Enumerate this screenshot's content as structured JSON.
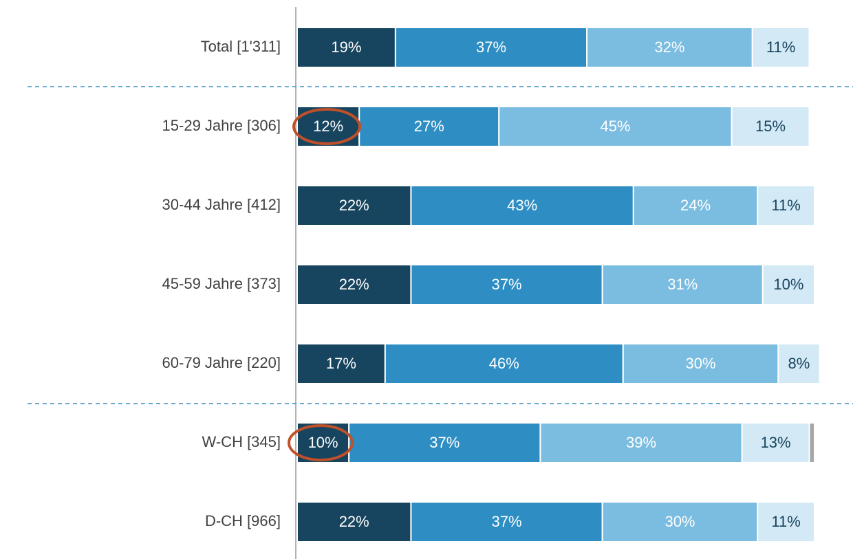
{
  "chart_data": {
    "type": "bar",
    "orientation": "horizontal",
    "stacked": true,
    "categories": [
      "Total [1'311]",
      "15-29 Jahre [306]",
      "30-44 Jahre [412]",
      "45-59 Jahre [373]",
      "60-79 Jahre [220]",
      "W-CH [345]",
      "D-CH [966]"
    ],
    "series": [
      {
        "color": "#17445e",
        "values": [
          19,
          12,
          22,
          22,
          17,
          10,
          22
        ],
        "value_labels": [
          "19%",
          "12%",
          "22%",
          "22%",
          "17%",
          "10%",
          "22%"
        ]
      },
      {
        "color": "#2e8ec4",
        "values": [
          37,
          27,
          43,
          37,
          46,
          37,
          37
        ],
        "value_labels": [
          "37%",
          "27%",
          "43%",
          "37%",
          "46%",
          "37%",
          "37%"
        ]
      },
      {
        "color": "#7bbde0",
        "values": [
          32,
          45,
          24,
          31,
          30,
          39,
          30
        ],
        "value_labels": [
          "32%",
          "45%",
          "24%",
          "31%",
          "30%",
          "39%",
          "30%"
        ]
      },
      {
        "color": "#d3e9f5",
        "values": [
          11,
          15,
          11,
          10,
          8,
          13,
          11
        ],
        "value_labels": [
          "11%",
          "15%",
          "11%",
          "10%",
          "8%",
          "13%",
          "11%"
        ]
      },
      {
        "color": "#a6a6a6",
        "values": [
          null,
          null,
          null,
          null,
          null,
          1,
          null
        ]
      }
    ]
  }
}
